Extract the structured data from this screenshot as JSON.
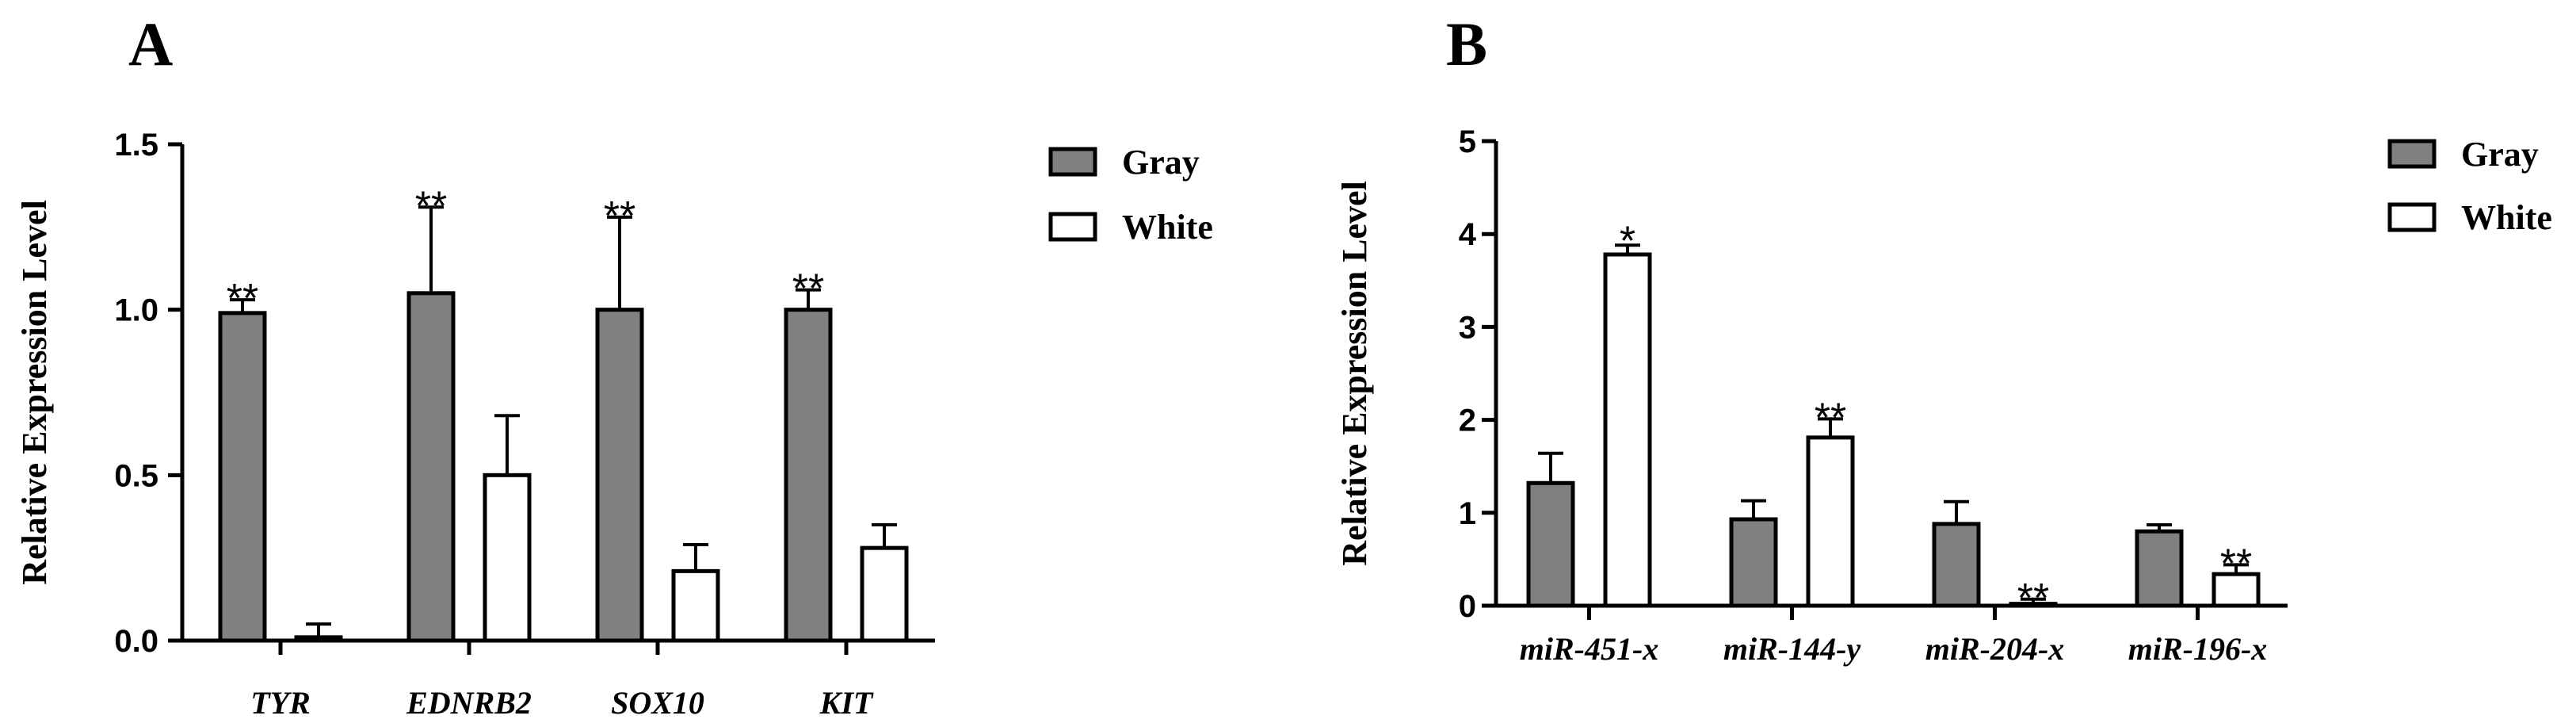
{
  "colors": {
    "gray": "#808080",
    "white": "#ffffff",
    "axis": "#000000"
  },
  "chart_data": [
    {
      "type": "bar",
      "panel": "A",
      "ylabel": "Relative Expression Level",
      "ylim": [
        0,
        1.5
      ],
      "yticks": [
        "0.0",
        "0.5",
        "1.0",
        "1.5"
      ],
      "categories": [
        "TYR",
        "EDNRB2",
        "SOX10",
        "KIT"
      ],
      "series": [
        {
          "name": "Gray",
          "color": "#808080",
          "values": [
            0.99,
            1.05,
            1.0,
            1.0
          ],
          "errors": [
            0.04,
            0.26,
            0.28,
            0.06
          ]
        },
        {
          "name": "White",
          "color": "#ffffff",
          "values": [
            0.01,
            0.5,
            0.21,
            0.28
          ],
          "errors": [
            0.04,
            0.18,
            0.08,
            0.07
          ]
        }
      ],
      "annotations": [
        {
          "category": 0,
          "series": 0,
          "text": "**"
        },
        {
          "category": 1,
          "series": 0,
          "text": "**"
        },
        {
          "category": 2,
          "series": 0,
          "text": "**"
        },
        {
          "category": 3,
          "series": 0,
          "text": "**"
        }
      ],
      "legend": "top-right"
    },
    {
      "type": "bar",
      "panel": "B",
      "ylabel": "Relative Expression Level",
      "ylim": [
        0,
        5
      ],
      "yticks": [
        "0",
        "1",
        "2",
        "3",
        "4",
        "5"
      ],
      "categories": [
        "miR-451-x",
        "miR-144-y",
        "miR-204-x",
        "miR-196-x"
      ],
      "series": [
        {
          "name": "Gray",
          "color": "#808080",
          "values": [
            1.32,
            0.93,
            0.88,
            0.8
          ],
          "errors": [
            0.32,
            0.2,
            0.24,
            0.07
          ]
        },
        {
          "name": "White",
          "color": "#ffffff",
          "values": [
            3.78,
            1.81,
            0.02,
            0.34
          ],
          "errors": [
            0.1,
            0.2,
            0.05,
            0.1
          ]
        }
      ],
      "annotations": [
        {
          "category": 0,
          "series": 1,
          "text": "*"
        },
        {
          "category": 1,
          "series": 1,
          "text": "**"
        },
        {
          "category": 2,
          "series": 1,
          "text": "**"
        },
        {
          "category": 3,
          "series": 1,
          "text": "**"
        }
      ],
      "legend": "top-right"
    }
  ]
}
